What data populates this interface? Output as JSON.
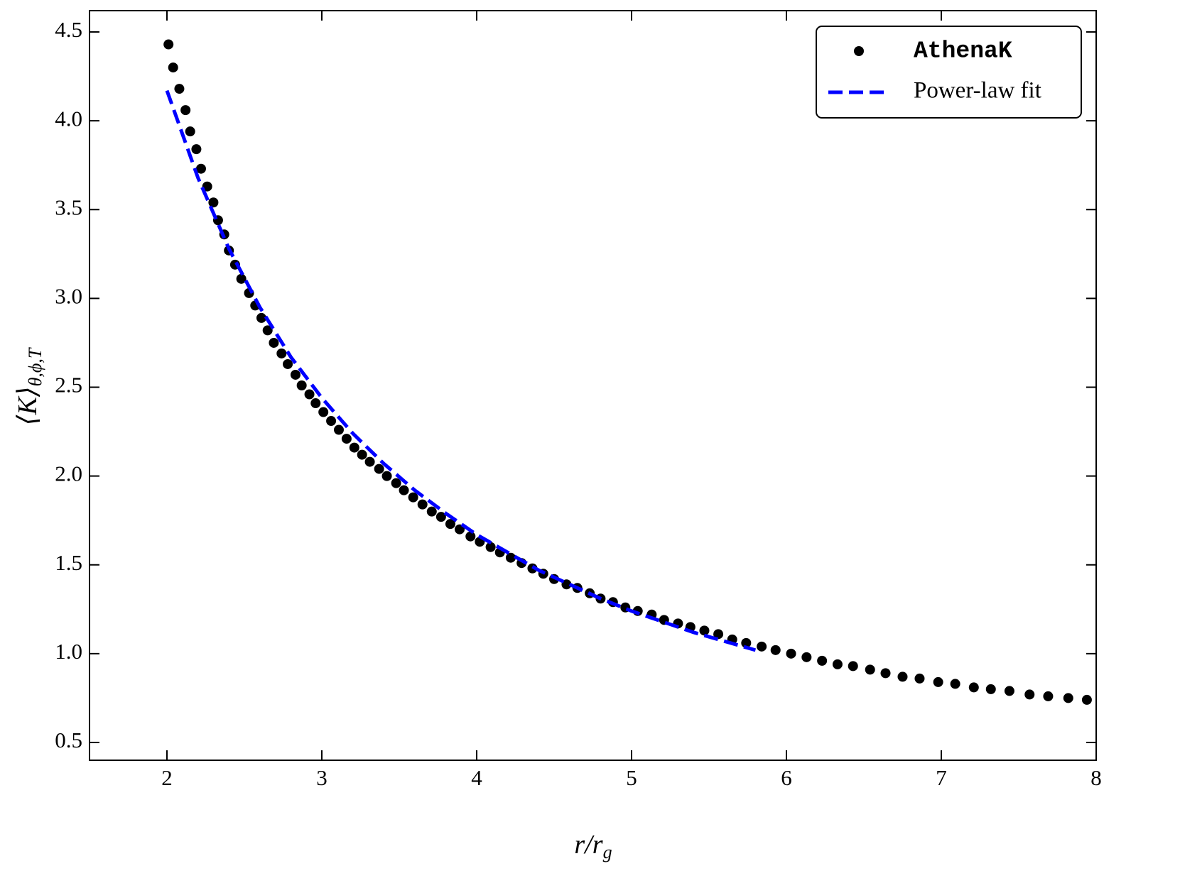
{
  "chart_data": {
    "type": "scatter",
    "xlabel": {
      "base": "r/r",
      "subscript": "g"
    },
    "ylabel": {
      "base": "⟨K⟩",
      "subscript": "θ,ϕ,T"
    },
    "xlim": [
      1.5,
      8
    ],
    "ylim": [
      0.4,
      4.62
    ],
    "xticks": [
      2,
      3,
      4,
      5,
      6,
      7,
      8
    ],
    "yticks": [
      0.5,
      {
        "value": 1.0,
        "label": "1.0"
      },
      1.5,
      {
        "value": 2.0,
        "label": "2.0"
      },
      2.5,
      {
        "value": 3.0,
        "label": "3.0"
      },
      3.5,
      {
        "value": 4.0,
        "label": "4.0"
      },
      4.5
    ],
    "legend": "upper right",
    "series": [
      {
        "name": "AthenaK",
        "color": "#000000",
        "style": "markers",
        "x": [
          2.01,
          2.04,
          2.08,
          2.12,
          2.15,
          2.19,
          2.22,
          2.26,
          2.3,
          2.33,
          2.37,
          2.4,
          2.44,
          2.48,
          2.53,
          2.57,
          2.61,
          2.65,
          2.69,
          2.74,
          2.78,
          2.83,
          2.87,
          2.92,
          2.96,
          3.01,
          3.06,
          3.11,
          3.16,
          3.21,
          3.26,
          3.31,
          3.37,
          3.42,
          3.48,
          3.53,
          3.59,
          3.65,
          3.71,
          3.77,
          3.83,
          3.89,
          3.96,
          4.02,
          4.09,
          4.15,
          4.22,
          4.29,
          4.36,
          4.43,
          4.5,
          4.58,
          4.65,
          4.73,
          4.8,
          4.88,
          4.96,
          5.04,
          5.13,
          5.21,
          5.3,
          5.38,
          5.47,
          5.56,
          5.65,
          5.74,
          5.84,
          5.93,
          6.03,
          6.13,
          6.23,
          6.33,
          6.43,
          6.54,
          6.64,
          6.75,
          6.86,
          6.98,
          7.09,
          7.21,
          7.32,
          7.44,
          7.57,
          7.69,
          7.82,
          7.94
        ],
        "values": [
          4.43,
          4.3,
          4.18,
          4.06,
          3.94,
          3.84,
          3.73,
          3.63,
          3.54,
          3.44,
          3.36,
          3.27,
          3.19,
          3.11,
          3.03,
          2.96,
          2.89,
          2.82,
          2.75,
          2.69,
          2.63,
          2.57,
          2.51,
          2.46,
          2.41,
          2.36,
          2.31,
          2.26,
          2.21,
          2.16,
          2.12,
          2.08,
          2.04,
          2.0,
          1.96,
          1.92,
          1.88,
          1.84,
          1.8,
          1.77,
          1.73,
          1.7,
          1.66,
          1.63,
          1.6,
          1.57,
          1.54,
          1.51,
          1.48,
          1.45,
          1.42,
          1.39,
          1.37,
          1.34,
          1.31,
          1.29,
          1.26,
          1.24,
          1.22,
          1.19,
          1.17,
          1.15,
          1.13,
          1.11,
          1.08,
          1.06,
          1.04,
          1.02,
          1.0,
          0.98,
          0.96,
          0.94,
          0.93,
          0.91,
          0.89,
          0.87,
          0.86,
          0.84,
          0.83,
          0.81,
          0.8,
          0.79,
          0.77,
          0.76,
          0.75,
          0.74
        ]
      },
      {
        "name": "Power-law fit",
        "color": "#0000ff",
        "style": "dashed-line",
        "x": [
          2.0,
          2.2,
          2.4,
          2.6,
          2.8,
          3.0,
          3.2,
          3.4,
          3.6,
          3.8,
          4.0,
          4.2,
          4.4,
          4.6,
          4.8,
          5.0,
          5.2,
          5.4,
          5.6,
          5.8
        ],
        "values": [
          4.17,
          3.68,
          3.28,
          2.95,
          2.67,
          2.44,
          2.24,
          2.07,
          1.92,
          1.79,
          1.67,
          1.57,
          1.47,
          1.39,
          1.31,
          1.24,
          1.18,
          1.12,
          1.07,
          1.02
        ]
      }
    ]
  }
}
